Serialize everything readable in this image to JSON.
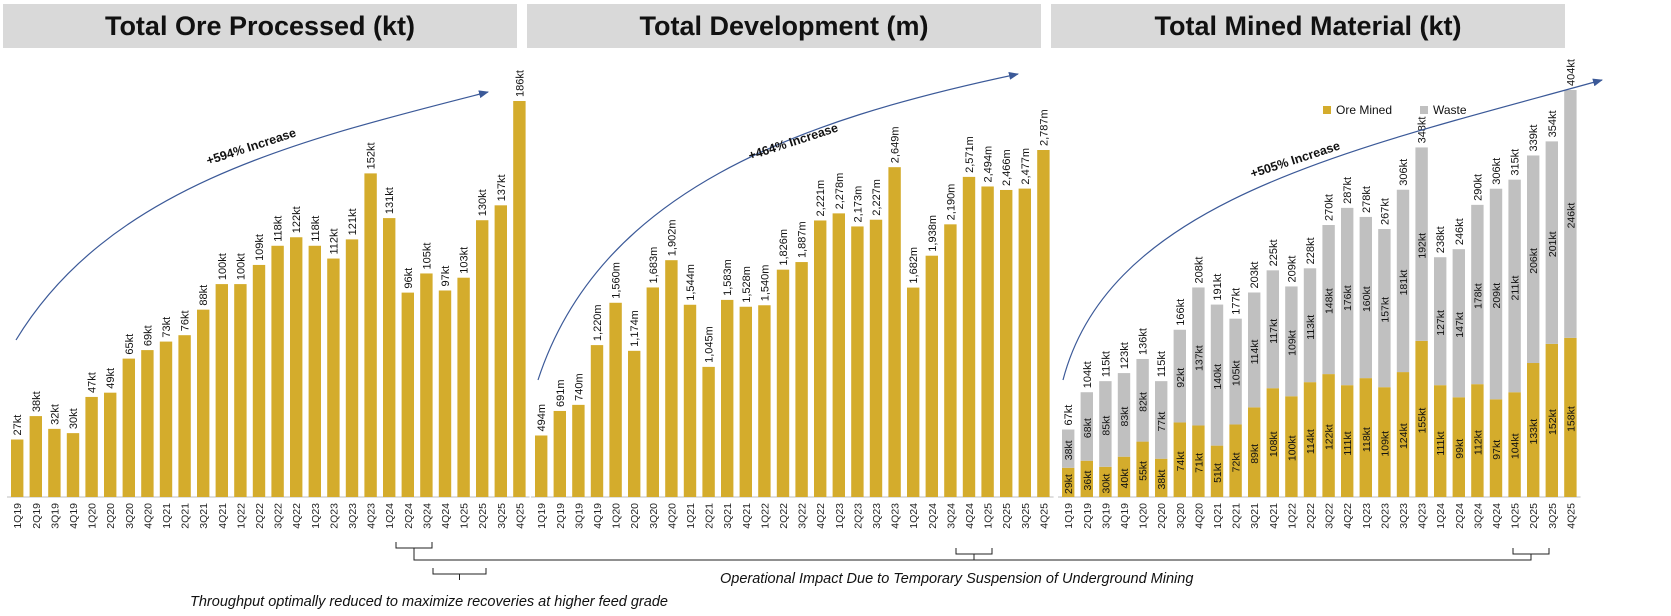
{
  "titles": {
    "ore": "Total Ore Processed (kt)",
    "dev": "Total Development (m)",
    "mined": "Total Mined Material (kt)"
  },
  "notes": {
    "operational": "Operational Impact Due to Temporary Suspension of Underground Mining",
    "throughput": "Throughput optimally reduced to maximize recoveries at higher feed grade"
  },
  "colors": {
    "gold": "#d4ac2c",
    "grey": "#c0c0c0",
    "arrow": "#3b5998"
  },
  "chart_data": [
    {
      "type": "bar",
      "title": "Total Ore Processed (kt)",
      "categories": [
        "1Q19",
        "2Q19",
        "3Q19",
        "4Q19",
        "1Q20",
        "2Q20",
        "3Q20",
        "4Q20",
        "1Q21",
        "2Q21",
        "3Q21",
        "4Q21",
        "1Q22",
        "2Q22",
        "3Q22",
        "4Q22",
        "1Q23",
        "2Q23",
        "3Q23",
        "4Q23",
        "1Q24",
        "2Q24",
        "3Q24",
        "4Q24",
        "1Q25",
        "2Q25",
        "3Q25",
        "4Q25"
      ],
      "values": [
        27,
        38,
        32,
        30,
        47,
        49,
        65,
        69,
        73,
        76,
        88,
        100,
        100,
        109,
        118,
        122,
        118,
        112,
        121,
        152,
        131,
        96,
        105,
        97,
        103,
        130,
        137,
        186
      ],
      "labels": [
        "27kt",
        "38kt",
        "32kt",
        "30kt",
        "47kt",
        "49kt",
        "65kt",
        "69kt",
        "73kt",
        "76kt",
        "88kt",
        "100kt",
        "100kt",
        "109kt",
        "118kt",
        "122kt",
        "118kt",
        "112kt",
        "121kt",
        "152kt",
        "131kt",
        "96kt",
        "105kt",
        "97kt",
        "103kt",
        "130kt",
        "137kt",
        "186kt"
      ],
      "increase_label": "+594% Increase",
      "ylim": [
        0,
        200
      ]
    },
    {
      "type": "bar",
      "title": "Total Development (m)",
      "categories": [
        "1Q19",
        "2Q19",
        "3Q19",
        "4Q19",
        "1Q20",
        "2Q20",
        "3Q20",
        "4Q20",
        "1Q21",
        "2Q21",
        "3Q21",
        "4Q21",
        "1Q22",
        "2Q22",
        "3Q22",
        "4Q22",
        "1Q23",
        "2Q23",
        "3Q23",
        "4Q23",
        "1Q24",
        "2Q24",
        "3Q24",
        "4Q24",
        "1Q25",
        "2Q25",
        "3Q25",
        "4Q25"
      ],
      "values": [
        494,
        691,
        740,
        1220,
        1560,
        1174,
        1683,
        1902,
        1544,
        1045,
        1583,
        1528,
        1540,
        1826,
        1887,
        2221,
        2278,
        2173,
        2227,
        2649,
        1682,
        1938,
        2190,
        2571,
        2494,
        2466,
        2477,
        2787
      ],
      "labels": [
        "494m",
        "691m",
        "740m",
        "1,220m",
        "1,560m",
        "1,174m",
        "1,683m",
        "1,902m",
        "1,544m",
        "1,045m",
        "1,583m",
        "1,528m",
        "1,540m",
        "1,826m",
        "1,887m",
        "2,221m",
        "2,278m",
        "2,173m",
        "2,227m",
        "2,649m",
        "1,682m",
        "1,938m",
        "2,190m",
        "2,571m",
        "2,494m",
        "2,466m",
        "2,477m",
        "2,787m"
      ],
      "increase_label": "+464% Increase",
      "ylim": [
        0,
        3000
      ]
    },
    {
      "type": "bar",
      "stacked": true,
      "title": "Total Mined Material (kt)",
      "categories": [
        "1Q19",
        "2Q19",
        "3Q19",
        "4Q19",
        "1Q20",
        "2Q20",
        "3Q20",
        "4Q20",
        "1Q21",
        "2Q21",
        "3Q21",
        "4Q21",
        "1Q22",
        "2Q22",
        "3Q22",
        "4Q22",
        "1Q23",
        "2Q23",
        "3Q23",
        "4Q23",
        "1Q24",
        "2Q24",
        "3Q24",
        "4Q24",
        "1Q25",
        "2Q25",
        "3Q25",
        "4Q25"
      ],
      "series": [
        {
          "name": "Ore Mined",
          "values": [
            29,
            36,
            30,
            40,
            55,
            38,
            74,
            71,
            51,
            72,
            89,
            108,
            100,
            114,
            122,
            111,
            118,
            109,
            124,
            155,
            111,
            99,
            112,
            97,
            104,
            133,
            152,
            158
          ],
          "labels": [
            "29kt",
            "36kt",
            "30kt",
            "40kt",
            "55kt",
            "38kt",
            "74kt",
            "71kt",
            "51kt",
            "72kt",
            "89kt",
            "108kt",
            "100kt",
            "114kt",
            "122kt",
            "111kt",
            "118kt",
            "109kt",
            "124kt",
            "155kt",
            "111kt",
            "99kt",
            "112kt",
            "97kt",
            "104kt",
            "133kt",
            "152kt",
            "158kt"
          ]
        },
        {
          "name": "Waste",
          "values": [
            38,
            68,
            85,
            83,
            82,
            77,
            92,
            137,
            140,
            105,
            114,
            117,
            109,
            113,
            148,
            176,
            160,
            157,
            181,
            192,
            127,
            147,
            178,
            209,
            211,
            206,
            201,
            246
          ],
          "labels": [
            "38kt",
            "68kt",
            "85kt",
            "83kt",
            "82kt",
            "77kt",
            "92kt",
            "137kt",
            "140kt",
            "105kt",
            "114kt",
            "117kt",
            "109kt",
            "113kt",
            "148kt",
            "176kt",
            "160kt",
            "157kt",
            "181kt",
            "192kt",
            "127kt",
            "147kt",
            "178kt",
            "209kt",
            "211kt",
            "206kt",
            "201kt",
            "246kt"
          ]
        }
      ],
      "totals": [
        "67kt",
        "104kt",
        "115kt",
        "123kt",
        "136kt",
        "115kt",
        "166kt",
        "208kt",
        "191kt",
        "177kt",
        "203kt",
        "225kt",
        "209kt",
        "228kt",
        "270kt",
        "287kt",
        "278kt",
        "267kt",
        "306kt",
        "348kt",
        "238kt",
        "246kt",
        "290kt",
        "306kt",
        "315kt",
        "339kt",
        "354kt",
        "404kt"
      ],
      "increase_label": "+505% Increase",
      "legend": "top-right",
      "ylim": [
        0,
        420
      ]
    }
  ]
}
